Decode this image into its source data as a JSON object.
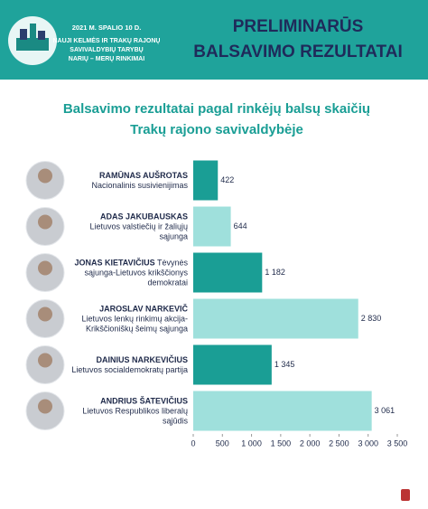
{
  "header": {
    "date": "2021 M. SPALIO 10 D.",
    "event": [
      "NAUJI KELMĖS IR TRAKŲ RAJONŲ",
      "SAVIVALDYBIŲ TARYBŲ",
      "NARIŲ – MERŲ RINKIMAI"
    ],
    "title": [
      "PRELIMINARŪS",
      "BALSAVIMO REZULTATAI"
    ]
  },
  "chart_data": {
    "type": "bar",
    "orientation": "horizontal",
    "title": [
      "Balsavimo rezultatai pagal rinkėjų balsų skaičių",
      "Trakų rajono savivaldybėje"
    ],
    "categories": [
      {
        "name": "RAMŪNAS AUŠROTAS",
        "party": "Nacionalinis susivienijimas"
      },
      {
        "name": "ADAS JAKUBAUSKAS",
        "party": "Lietuvos valstiečių ir žaliųjų sąjunga"
      },
      {
        "name": "JONAS KIETAVIČIUS",
        "party": "Tėvynės sąjunga-Lietuvos krikščionys demokratai"
      },
      {
        "name": "JAROSLAV NARKEVIČ",
        "party": "Lietuvos lenkų rinkimų akcija-Krikščioniškų šeimų sąjunga"
      },
      {
        "name": "DAINIUS NARKEVIČIUS",
        "party": "Lietuvos socialdemokratų partija"
      },
      {
        "name": "ANDRIUS ŠATEVIČIUS",
        "party": "Lietuvos Respublikos liberalų sąjūdis"
      }
    ],
    "values": [
      422,
      644,
      1182,
      2830,
      1345,
      3061
    ],
    "value_labels": [
      "422",
      "644",
      "1 182",
      "2 830",
      "1 345",
      "3 061"
    ],
    "colors": [
      "#1a9e95",
      "#9fe0dc",
      "#1a9e95",
      "#9fe0dc",
      "#1a9e95",
      "#9fe0dc"
    ],
    "xlim": [
      0,
      3500
    ],
    "xticks": [
      0,
      500,
      {
        "value": 1000,
        "label": "1 000"
      },
      {
        "value": 1500,
        "label": "1 500"
      },
      {
        "value": 2000,
        "label": "2 000"
      },
      {
        "value": 2500,
        "label": "2 500"
      },
      {
        "value": 3000,
        "label": "3 000"
      },
      {
        "value": 3500,
        "label": "3 500"
      }
    ]
  }
}
